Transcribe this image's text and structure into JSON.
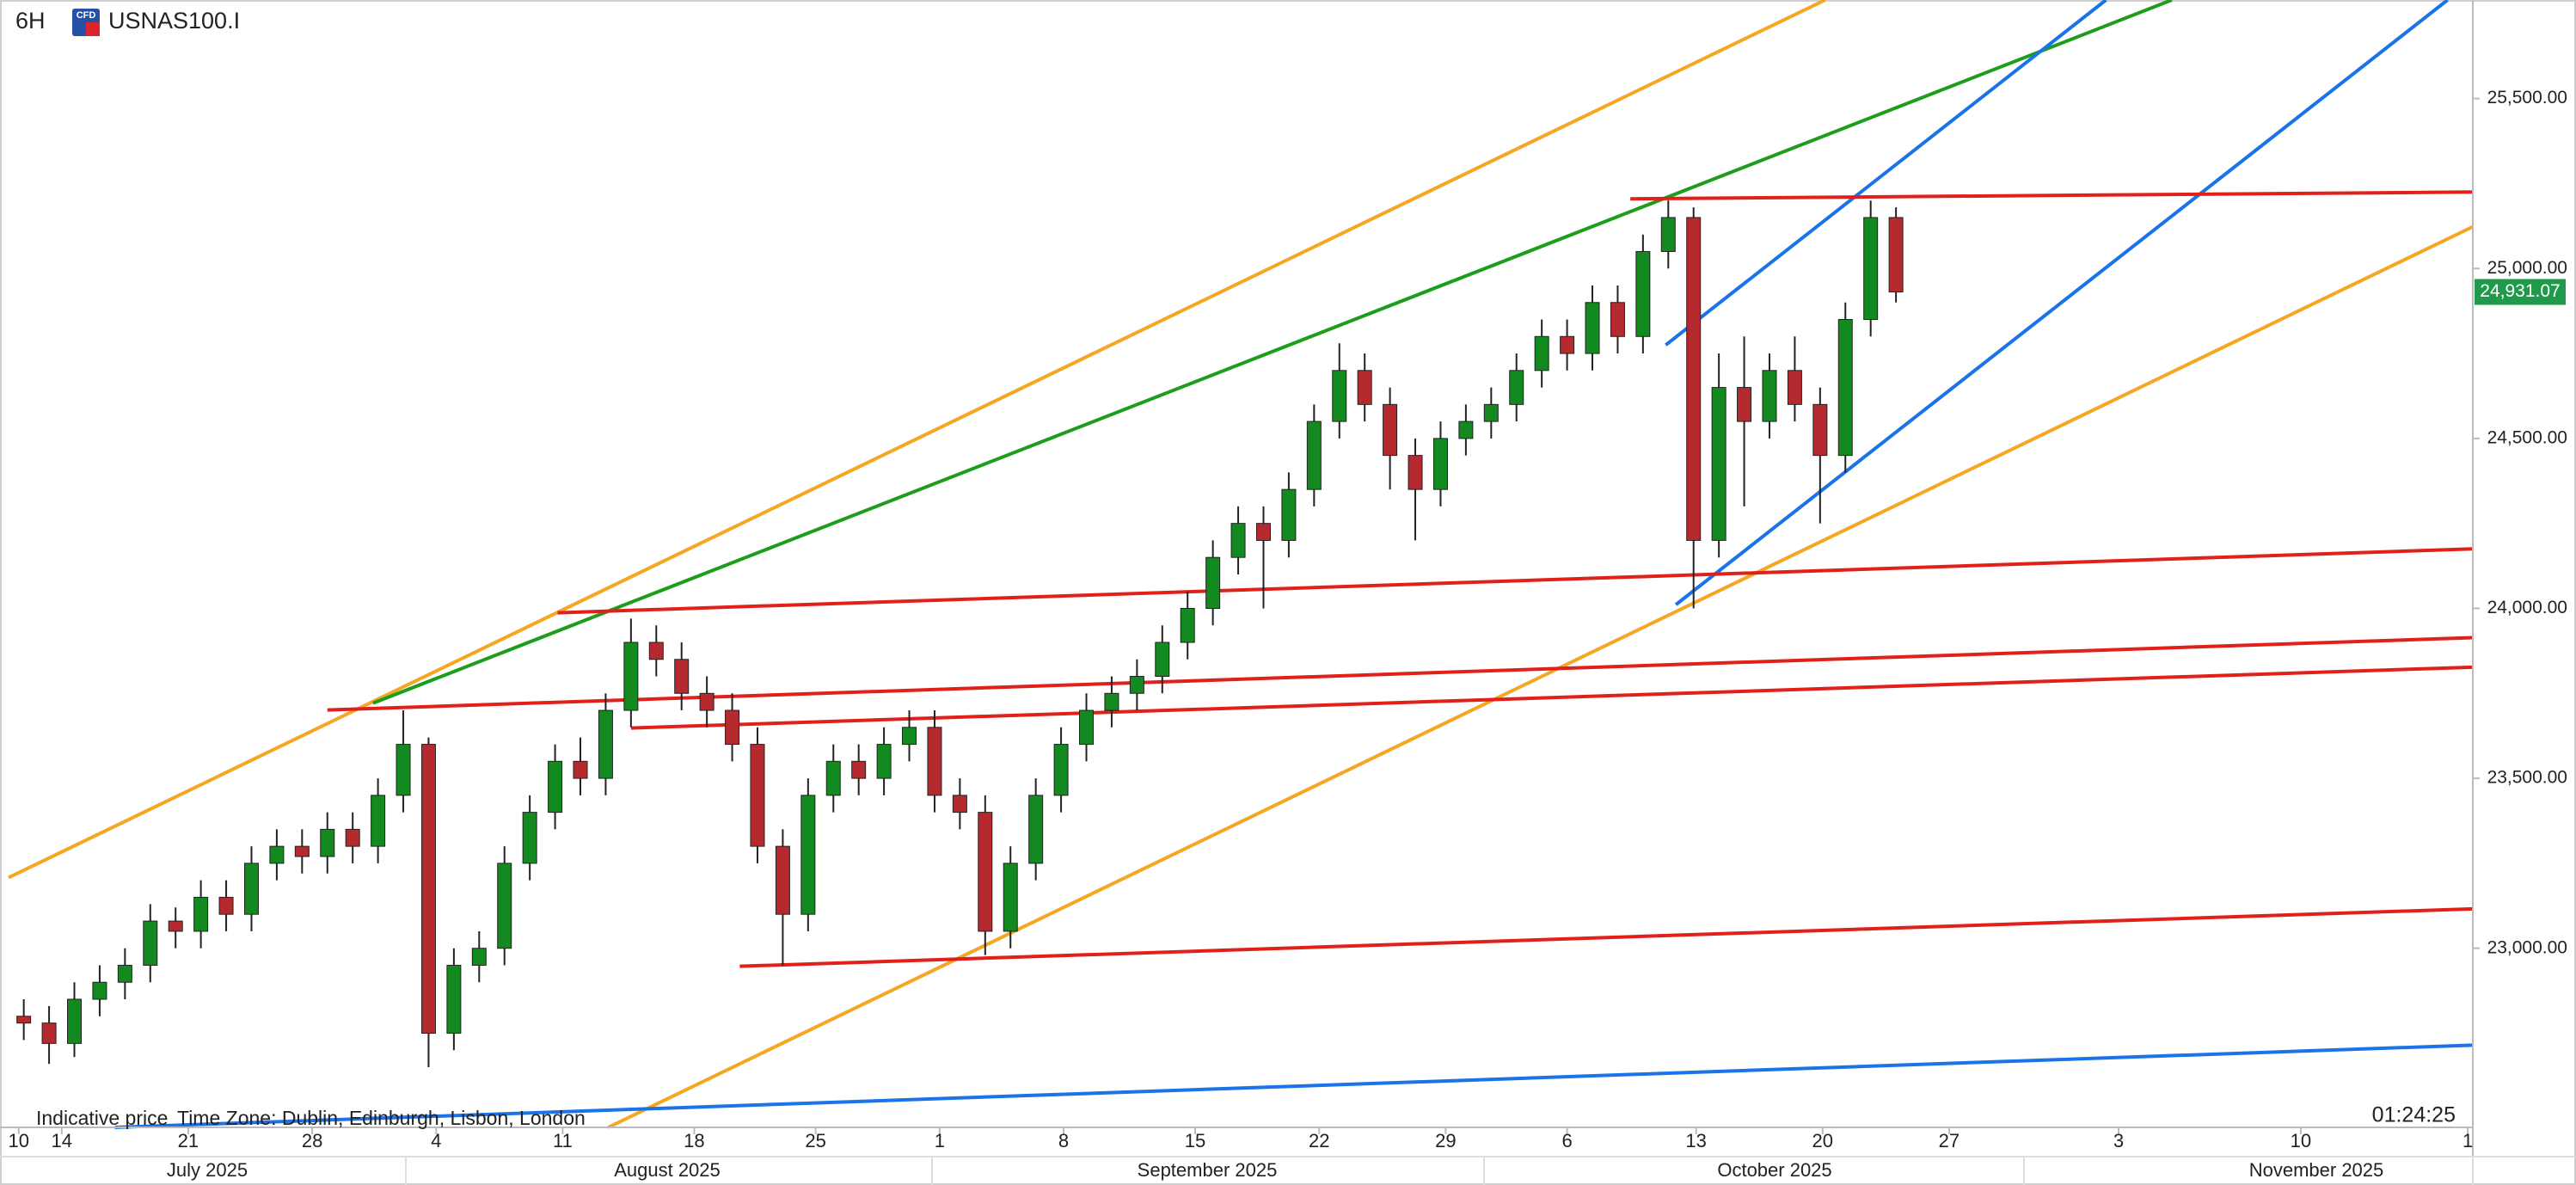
{
  "chart_data": {
    "type": "candlestick",
    "timeframe": "6H",
    "badge": "CFD",
    "symbol": "USNAS100.I",
    "price_note": "Indicative price",
    "timezone": "Time Zone: Dublin, Edinburgh, Lisbon, London",
    "countdown": "01:24:25",
    "up_color": "#138a1f",
    "down_color": "#b52a2f",
    "wick_color": "#222222",
    "xlim": [
      -2.1,
      95.3
    ],
    "ylim": [
      22473,
      25790
    ],
    "x": [
      -1.5,
      -0.5,
      0.5,
      1.5,
      2.5,
      3.5,
      4.5,
      5.5,
      6.5,
      7.5,
      8.5,
      9.5,
      10.5,
      11.5,
      12.5,
      13.5,
      14.5,
      15.5,
      16.5,
      17.5,
      18.5,
      19.5,
      20.5,
      21.5,
      22.5,
      23.5,
      24.5,
      25.5,
      26.5,
      27.5,
      28.5,
      29.5,
      30.5,
      31.5,
      32.5,
      33.5,
      34.5,
      35.5,
      36.5,
      37.5,
      38.5,
      39.5,
      40.5,
      41.5,
      42.5,
      43.5,
      44.5,
      45.5,
      46.5,
      47.5,
      48.5,
      49.5,
      50.5,
      51.5,
      52.5,
      53.5,
      54.5,
      55.5,
      56.5,
      57.5,
      58.5,
      59.5,
      60.5,
      61.5,
      62.5,
      63.5,
      64.5,
      65.5,
      66.5,
      67.5,
      68.5,
      69.5,
      70.5,
      71.5,
      72.5
    ],
    "open": [
      22800,
      22780,
      22720,
      22850,
      22900,
      22950,
      23080,
      23050,
      23150,
      23100,
      23250,
      23300,
      23270,
      23350,
      23300,
      23450,
      23600,
      22750,
      22950,
      23000,
      23250,
      23400,
      23550,
      23500,
      23700,
      23900,
      23850,
      23750,
      23700,
      23600,
      23300,
      23100,
      23450,
      23550,
      23500,
      23600,
      23650,
      23450,
      23400,
      23050,
      23250,
      23450,
      23600,
      23700,
      23750,
      23800,
      23900,
      24000,
      24150,
      24250,
      24200,
      24350,
      24550,
      24700,
      24600,
      24450,
      24350,
      24500,
      24550,
      24600,
      24700,
      24800,
      24750,
      24900,
      24800,
      25050,
      25150,
      24200,
      24650,
      24550,
      24700,
      24600,
      24450,
      24850,
      25150
    ],
    "high": [
      22850,
      22830,
      22900,
      22950,
      23000,
      23130,
      23120,
      23200,
      23200,
      23300,
      23350,
      23350,
      23400,
      23400,
      23500,
      23700,
      23620,
      23000,
      23050,
      23300,
      23450,
      23600,
      23620,
      23750,
      23970,
      23950,
      23900,
      23800,
      23750,
      23650,
      23350,
      23500,
      23600,
      23600,
      23650,
      23700,
      23700,
      23500,
      23450,
      23300,
      23500,
      23650,
      23750,
      23800,
      23850,
      23950,
      24050,
      24200,
      24300,
      24300,
      24400,
      24600,
      24780,
      24750,
      24650,
      24500,
      24550,
      24600,
      24650,
      24750,
      24850,
      24850,
      24950,
      24950,
      25100,
      25200,
      25180,
      24750,
      24800,
      24750,
      24800,
      24650,
      24900,
      25200,
      25180
    ],
    "low": [
      22730,
      22660,
      22680,
      22800,
      22850,
      22900,
      23000,
      23000,
      23050,
      23050,
      23200,
      23220,
      23220,
      23250,
      23250,
      23400,
      22650,
      22700,
      22900,
      22950,
      23200,
      23350,
      23450,
      23450,
      23650,
      23800,
      23700,
      23650,
      23550,
      23250,
      22950,
      23050,
      23400,
      23450,
      23450,
      23550,
      23400,
      23350,
      22980,
      23000,
      23200,
      23400,
      23550,
      23650,
      23700,
      23750,
      23850,
      23950,
      24100,
      24000,
      24150,
      24300,
      24500,
      24550,
      24350,
      24200,
      24300,
      24450,
      24500,
      24550,
      24650,
      24700,
      24700,
      24750,
      24750,
      25000,
      24000,
      24150,
      24300,
      24500,
      24550,
      24250,
      24400,
      24800,
      24900
    ],
    "close": [
      22780,
      22720,
      22850,
      22900,
      22950,
      23080,
      23050,
      23150,
      23100,
      23250,
      23300,
      23270,
      23350,
      23300,
      23450,
      23600,
      22750,
      22950,
      23000,
      23250,
      23400,
      23550,
      23500,
      23700,
      23900,
      23850,
      23750,
      23700,
      23600,
      23300,
      23100,
      23450,
      23550,
      23500,
      23600,
      23650,
      23450,
      23400,
      23050,
      23250,
      23450,
      23600,
      23700,
      23750,
      23800,
      23900,
      24000,
      24150,
      24250,
      24200,
      24350,
      24550,
      24700,
      24600,
      24450,
      24350,
      24500,
      24550,
      24600,
      24700,
      24800,
      24750,
      24900,
      24800,
      25050,
      25150,
      24200,
      24650,
      24550,
      24700,
      24600,
      24450,
      24850,
      25150,
      24931.07
    ],
    "last_price": {
      "value": 24931.07,
      "label": "24,931.07"
    },
    "last_price_color": "#1f9a4a",
    "yticks": [
      {
        "value": 23000,
        "label": "23,000.00"
      },
      {
        "value": 23500,
        "label": "23,500.00"
      },
      {
        "value": 24000,
        "label": "24,000.00"
      },
      {
        "value": 24500,
        "label": "24,500.00"
      },
      {
        "value": 25000,
        "label": "25,000.00"
      },
      {
        "value": 25500,
        "label": "25,500.00"
      }
    ],
    "xticks": [
      {
        "value": -1.7,
        "label": "10"
      },
      {
        "value": 0,
        "label": "14"
      },
      {
        "value": 5,
        "label": "21"
      },
      {
        "value": 9.9,
        "label": "28"
      },
      {
        "value": 14.8,
        "label": "4"
      },
      {
        "value": 19.8,
        "label": "11"
      },
      {
        "value": 25,
        "label": "18"
      },
      {
        "value": 29.8,
        "label": "25"
      },
      {
        "value": 34.7,
        "label": "1"
      },
      {
        "value": 39.6,
        "label": "8"
      },
      {
        "value": 44.8,
        "label": "15"
      },
      {
        "value": 49.7,
        "label": "22"
      },
      {
        "value": 54.7,
        "label": "29"
      },
      {
        "value": 59.5,
        "label": "6"
      },
      {
        "value": 64.6,
        "label": "13"
      },
      {
        "value": 69.6,
        "label": "20"
      },
      {
        "value": 74.6,
        "label": "27"
      },
      {
        "value": 81.3,
        "label": "3"
      },
      {
        "value": 88.5,
        "label": "10"
      },
      {
        "value": 95.1,
        "label": "1"
      }
    ],
    "months": [
      "July 2025",
      "August 2025",
      "September 2025",
      "October 2025",
      "November 2025"
    ],
    "lines": [
      {
        "color": "#f5a623",
        "x": [
          -2.1,
          69.7
        ],
        "y": [
          23208,
          25790
        ]
      },
      {
        "color": "#1c9e1c",
        "x": [
          12.3,
          83.4
        ],
        "y": [
          23721,
          25790
        ]
      },
      {
        "color": "#1a73e8",
        "x": [
          63.4,
          80.8
        ],
        "y": [
          24775,
          25790
        ]
      },
      {
        "color": "#1a73e8",
        "x": [
          63.8,
          94.3
        ],
        "y": [
          24011,
          25790
        ]
      },
      {
        "color": "#f5a623",
        "x": [
          21.6,
          95.3
        ],
        "y": [
          22473,
          25123
        ]
      },
      {
        "color": "#e0201b",
        "x": [
          62.0,
          95.3
        ],
        "y": [
          25205,
          25225
        ]
      },
      {
        "color": "#e0201b",
        "x": [
          19.6,
          95.3
        ],
        "y": [
          23987,
          24175
        ]
      },
      {
        "color": "#e0201b",
        "x": [
          10.5,
          95.3
        ],
        "y": [
          23701,
          23914
        ]
      },
      {
        "color": "#e0201b",
        "x": [
          22.5,
          95.3
        ],
        "y": [
          23648,
          23827
        ]
      },
      {
        "color": "#e0201b",
        "x": [
          26.8,
          95.3
        ],
        "y": [
          22947,
          23116
        ]
      },
      {
        "color": "#1a73e8",
        "x": [
          2.1,
          95.3
        ],
        "y": [
          22473,
          22715
        ]
      }
    ]
  }
}
